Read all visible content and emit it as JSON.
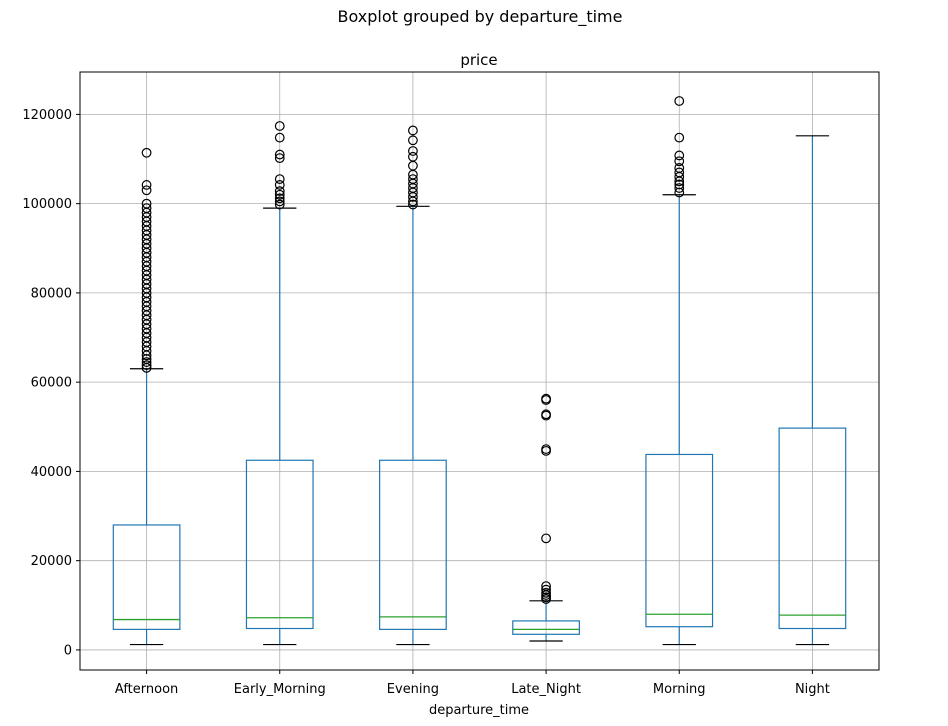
{
  "chart_data": {
    "type": "boxplot",
    "suptitle": "Boxplot grouped by departure_time",
    "title": "price",
    "xlabel": "departure_time",
    "ylabel": "",
    "ylim": [
      -4500,
      129500
    ],
    "yticks": [
      0,
      20000,
      40000,
      60000,
      80000,
      100000,
      120000
    ],
    "grid": true,
    "colors": {
      "box": "#1f77b4",
      "median": "#2ca02c",
      "cap": "#000000",
      "flier": "#000000",
      "grid": "#b0b0b0"
    },
    "categories": [
      "Afternoon",
      "Early_Morning",
      "Evening",
      "Late_Night",
      "Morning",
      "Night"
    ],
    "boxes": [
      {
        "name": "Afternoon",
        "whislo": 1200,
        "q1": 4600,
        "med": 6800,
        "q3": 28000,
        "whishi": 63000,
        "fliers": [
          63200,
          63800,
          64500,
          65200,
          66000,
          67000,
          68000,
          69000,
          70000,
          71000,
          72000,
          73000,
          74000,
          75000,
          76000,
          77000,
          78000,
          79000,
          80000,
          81000,
          82000,
          83000,
          84000,
          85000,
          86000,
          87000,
          88000,
          89000,
          90000,
          91000,
          92000,
          93000,
          94000,
          95000,
          96000,
          97000,
          98000,
          99000,
          100000,
          103000,
          104200,
          111400
        ]
      },
      {
        "name": "Early_Morning",
        "whislo": 1200,
        "q1": 4800,
        "med": 7200,
        "q3": 42500,
        "whishi": 99000,
        "fliers": [
          99800,
          100500,
          101200,
          102000,
          102800,
          104200,
          105500,
          110200,
          111000,
          114800,
          117400
        ]
      },
      {
        "name": "Evening",
        "whislo": 1200,
        "q1": 4600,
        "med": 7400,
        "q3": 42500,
        "whishi": 99400,
        "fliers": [
          99800,
          100500,
          101500,
          102500,
          103500,
          104500,
          105500,
          106500,
          108500,
          110500,
          111800,
          114200,
          116400
        ]
      },
      {
        "name": "Late_Night",
        "whislo": 2000,
        "q1": 3500,
        "med": 4600,
        "q3": 6500,
        "whishi": 11000,
        "fliers": [
          11400,
          11800,
          12300,
          12800,
          13500,
          14300,
          25000,
          44600,
          45000,
          52500,
          52800,
          56000,
          56300
        ]
      },
      {
        "name": "Morning",
        "whislo": 1200,
        "q1": 5200,
        "med": 8000,
        "q3": 43800,
        "whishi": 102000,
        "fliers": [
          102500,
          103500,
          104300,
          105000,
          106000,
          107000,
          108000,
          109500,
          110800,
          114800,
          123000
        ]
      },
      {
        "name": "Night",
        "whislo": 1200,
        "q1": 4800,
        "med": 7800,
        "q3": 49700,
        "whishi": 115200,
        "fliers": []
      }
    ]
  }
}
